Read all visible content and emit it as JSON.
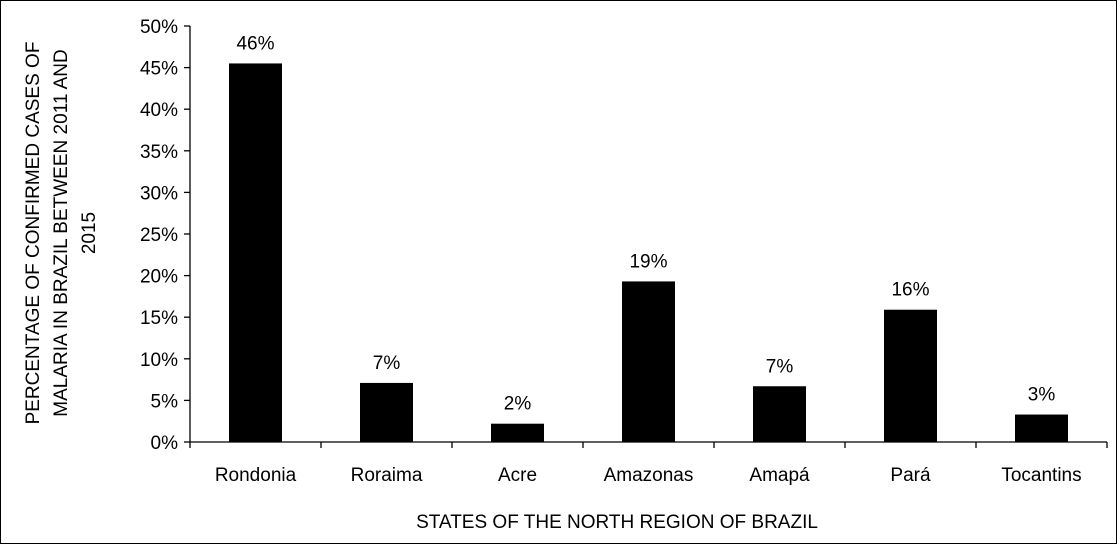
{
  "chart_data": {
    "type": "bar",
    "categories": [
      "Rondonia",
      "Roraima",
      "Acre",
      "Amazonas",
      "Amapá",
      "Pará",
      "Tocantins"
    ],
    "values": [
      0.455,
      0.071,
      0.022,
      0.193,
      0.067,
      0.159,
      0.033
    ],
    "data_labels": [
      "46%",
      "7%",
      "2%",
      "19%",
      "7%",
      "16%",
      "3%"
    ],
    "y_ticks": [
      "0%",
      "5%",
      "10%",
      "15%",
      "20%",
      "25%",
      "30%",
      "35%",
      "40%",
      "45%",
      "50%"
    ],
    "ylim": [
      0,
      0.5
    ],
    "xlabel": "STATES OF THE NORTH REGION OF BRAZIL",
    "ylabel_lines": [
      "PERCENTAGE OF CONFIRMED CASES OF",
      "MALARIA IN BRAZIL BETWEEN 2011 AND",
      "2015"
    ],
    "bar_color": "#000000",
    "grid": false,
    "legend": "none"
  }
}
